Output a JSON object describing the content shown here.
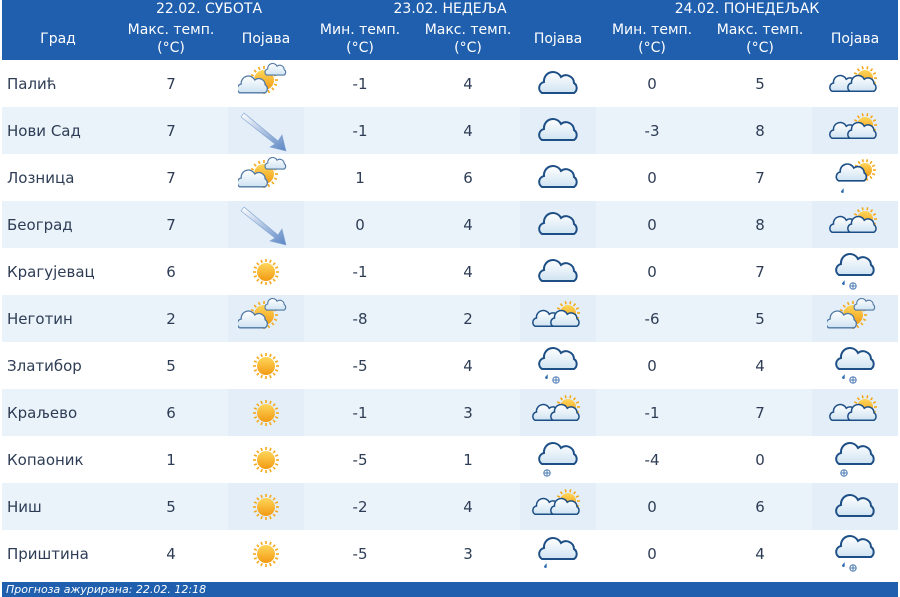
{
  "header": {
    "days": [
      "22.02. СУБОТА",
      "23.02. НЕДЕЉА",
      "24.02. ПОНЕДЕЉАК"
    ],
    "col_city": "Град",
    "col_max": "Макс. темп. (°C)",
    "col_min": "Мин. темп. (°C)",
    "col_phen": "Појава"
  },
  "rows": [
    {
      "city": "Палић",
      "d1_max": "7",
      "d1_icon": "sun-cloud-icon",
      "d2_min": "-1",
      "d2_max": "4",
      "d2_icon": "cloud-icon",
      "d3_min": "0",
      "d3_max": "5",
      "d3_icon": "cloud-sun-icon"
    },
    {
      "city": "Нови Сад",
      "d1_max": "7",
      "d1_icon": "wind-arrow-icon",
      "d2_min": "-1",
      "d2_max": "4",
      "d2_icon": "cloud-icon",
      "d3_min": "-3",
      "d3_max": "8",
      "d3_icon": "cloud-sun-icon"
    },
    {
      "city": "Лозница",
      "d1_max": "7",
      "d1_icon": "sun-cloud-icon",
      "d2_min": "1",
      "d2_max": "6",
      "d2_icon": "cloud-icon",
      "d3_min": "0",
      "d3_max": "7",
      "d3_icon": "cloud-sun-rain-icon"
    },
    {
      "city": "Београд",
      "d1_max": "7",
      "d1_icon": "wind-arrow-icon",
      "d2_min": "0",
      "d2_max": "4",
      "d2_icon": "cloud-icon",
      "d3_min": "0",
      "d3_max": "8",
      "d3_icon": "cloud-sun-icon"
    },
    {
      "city": "Крагујевац",
      "d1_max": "6",
      "d1_icon": "sun-icon",
      "d2_min": "-1",
      "d2_max": "4",
      "d2_icon": "cloud-icon",
      "d3_min": "0",
      "d3_max": "7",
      "d3_icon": "cloud-rain-snow-icon"
    },
    {
      "city": "Неготин",
      "d1_max": "2",
      "d1_icon": "sun-cloud-icon",
      "d2_min": "-8",
      "d2_max": "2",
      "d2_icon": "cloud-sun-icon",
      "d3_min": "-6",
      "d3_max": "5",
      "d3_icon": "sun-cloud-icon"
    },
    {
      "city": "Златибор",
      "d1_max": "5",
      "d1_icon": "sun-icon",
      "d2_min": "-5",
      "d2_max": "4",
      "d2_icon": "cloud-rain-snow-icon",
      "d3_min": "0",
      "d3_max": "4",
      "d3_icon": "cloud-rain-snow-icon"
    },
    {
      "city": "Краљево",
      "d1_max": "6",
      "d1_icon": "sun-icon",
      "d2_min": "-1",
      "d2_max": "3",
      "d2_icon": "cloud-sun-icon",
      "d3_min": "-1",
      "d3_max": "7",
      "d3_icon": "cloud-sun-icon"
    },
    {
      "city": "Копаоник",
      "d1_max": "1",
      "d1_icon": "sun-icon",
      "d2_min": "-5",
      "d2_max": "1",
      "d2_icon": "cloud-snow-icon",
      "d3_min": "-4",
      "d3_max": "0",
      "d3_icon": "cloud-snow-icon"
    },
    {
      "city": "Ниш",
      "d1_max": "5",
      "d1_icon": "sun-icon",
      "d2_min": "-2",
      "d2_max": "4",
      "d2_icon": "cloud-sun-icon",
      "d3_min": "0",
      "d3_max": "6",
      "d3_icon": "cloud-icon"
    },
    {
      "city": "Приштина",
      "d1_max": "4",
      "d1_icon": "sun-icon",
      "d2_min": "-5",
      "d2_max": "3",
      "d2_icon": "cloud-rain-icon",
      "d3_min": "0",
      "d3_max": "4",
      "d3_icon": "cloud-rain-snow-icon"
    }
  ],
  "footer": {
    "updated": "Прогноза ажурирана:  22.02. 12:18"
  }
}
